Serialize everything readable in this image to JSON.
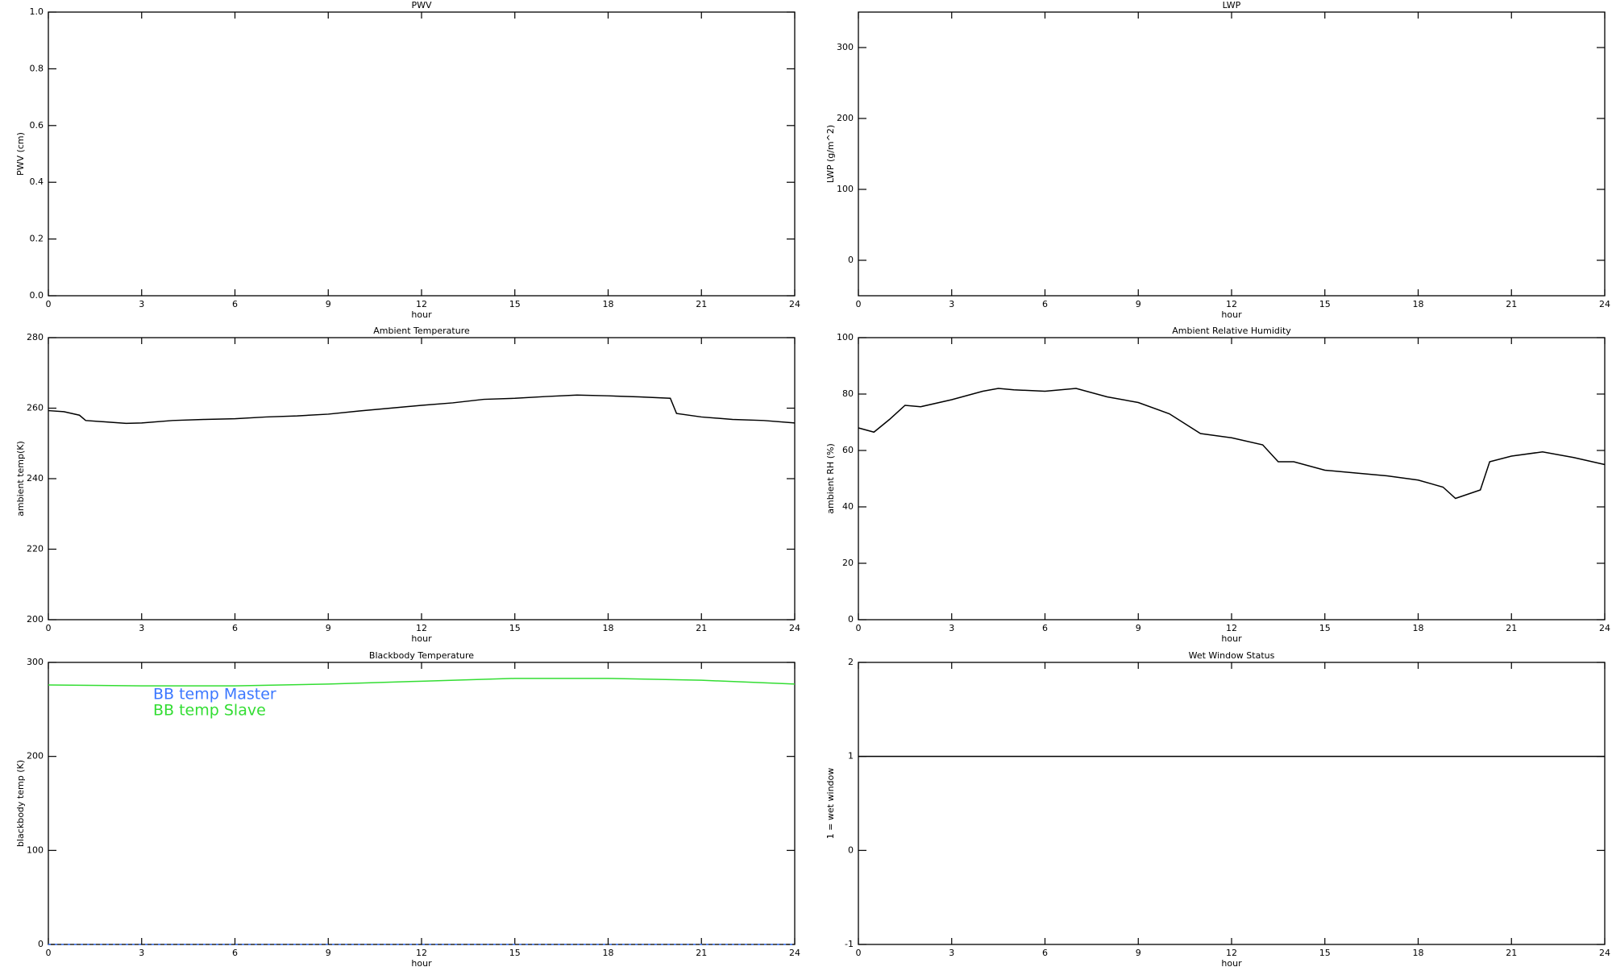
{
  "chart_data": [
    {
      "type": "line",
      "title": "PWV",
      "xlabel": "hour",
      "ylabel": "PWV (cm)",
      "xlim": [
        0,
        24
      ],
      "xticks": [
        0,
        3,
        6,
        9,
        12,
        15,
        18,
        21,
        24
      ],
      "ylim": [
        0,
        1
      ],
      "yticks": [
        {
          "value": 0,
          "label": "0.0"
        },
        {
          "value": 0.2,
          "label": "0.2"
        },
        {
          "value": 0.4,
          "label": "0.4"
        },
        {
          "value": 0.6,
          "label": "0.6"
        },
        {
          "value": 0.8,
          "label": "0.8"
        },
        {
          "value": 1,
          "label": "1.0"
        }
      ],
      "series": []
    },
    {
      "type": "line",
      "title": "LWP",
      "xlabel": "hour",
      "ylabel": "LWP (g/m^2)",
      "xlim": [
        0,
        24
      ],
      "xticks": [
        0,
        3,
        6,
        9,
        12,
        15,
        18,
        21,
        24
      ],
      "ylim": [
        -50,
        350
      ],
      "yticks": [
        0,
        100,
        200,
        300
      ],
      "series": []
    },
    {
      "type": "line",
      "title": "Ambient Temperature",
      "xlabel": "hour",
      "ylabel": "ambient temp(K)",
      "xlim": [
        0,
        24
      ],
      "xticks": [
        0,
        3,
        6,
        9,
        12,
        15,
        18,
        21,
        24
      ],
      "ylim": [
        200,
        280
      ],
      "yticks": [
        200,
        220,
        240,
        260,
        280
      ],
      "series": [
        {
          "color": "#000000",
          "x": [
            0,
            0.5,
            1,
            1.2,
            2,
            2.5,
            3,
            4,
            5,
            6,
            7,
            8,
            9,
            10,
            11,
            12,
            13,
            14,
            15,
            16,
            17,
            18,
            19,
            20,
            20.2,
            21,
            22,
            23,
            24
          ],
          "values": [
            259.3,
            259,
            258,
            256.5,
            256,
            255.7,
            255.8,
            256.5,
            256.8,
            257,
            257.5,
            257.8,
            258.3,
            259.2,
            260,
            260.8,
            261.5,
            262.5,
            262.8,
            263.3,
            263.7,
            263.5,
            263.2,
            262.8,
            258.5,
            257.5,
            256.8,
            256.5,
            255.8
          ]
        }
      ]
    },
    {
      "type": "line",
      "title": "Ambient Relative Humidity",
      "xlabel": "hour",
      "ylabel": "ambient RH (%)",
      "xlim": [
        0,
        24
      ],
      "xticks": [
        0,
        3,
        6,
        9,
        12,
        15,
        18,
        21,
        24
      ],
      "ylim": [
        0,
        100
      ],
      "yticks": [
        0,
        20,
        40,
        60,
        80,
        100
      ],
      "series": [
        {
          "color": "#000000",
          "x": [
            0,
            0.5,
            1,
            1.5,
            2,
            3,
            4,
            4.5,
            5,
            6,
            7,
            8,
            9,
            10,
            11,
            12,
            13,
            13.5,
            14,
            15,
            16,
            17,
            18,
            18.8,
            19.2,
            20,
            20.3,
            21,
            22,
            23,
            24
          ],
          "values": [
            68,
            66.5,
            71,
            76,
            75.5,
            78,
            81,
            82,
            81.5,
            81,
            82,
            79,
            77,
            73,
            66,
            64.5,
            62,
            56,
            56,
            53,
            52,
            51,
            49.5,
            47,
            43,
            46,
            56,
            58,
            59.5,
            57.5,
            55
          ]
        }
      ]
    },
    {
      "type": "line",
      "title": "Blackbody Temperature",
      "xlabel": "hour",
      "ylabel": "blackbody temp (K)",
      "xlim": [
        0,
        24
      ],
      "xticks": [
        0,
        3,
        6,
        9,
        12,
        15,
        18,
        21,
        24
      ],
      "ylim": [
        0,
        300
      ],
      "yticks": [
        0,
        100,
        200,
        300
      ],
      "legend": "upper left",
      "series": [
        {
          "name": "BB temp Master",
          "color": "#3c78ff",
          "x": [
            0,
            3,
            6,
            9,
            12,
            15,
            18,
            21,
            24
          ],
          "values": [
            0,
            0,
            0,
            0,
            0,
            0,
            0,
            0,
            0
          ]
        },
        {
          "name": "BB temp Slave",
          "color": "#33dd33",
          "x": [
            0,
            3,
            6,
            9,
            12,
            15,
            18,
            21,
            24
          ],
          "values": [
            276,
            275,
            275,
            277,
            280,
            283,
            283,
            281,
            277
          ]
        }
      ]
    },
    {
      "type": "line",
      "title": "Wet Window Status",
      "xlabel": "hour",
      "ylabel": "1 = wet window",
      "xlim": [
        0,
        24
      ],
      "xticks": [
        0,
        3,
        6,
        9,
        12,
        15,
        18,
        21,
        24
      ],
      "ylim": [
        -1,
        2
      ],
      "yticks": [
        -1,
        0,
        1,
        2
      ],
      "series": [
        {
          "color": "#000000",
          "x": [
            0,
            24
          ],
          "values": [
            1,
            1
          ]
        }
      ]
    }
  ]
}
